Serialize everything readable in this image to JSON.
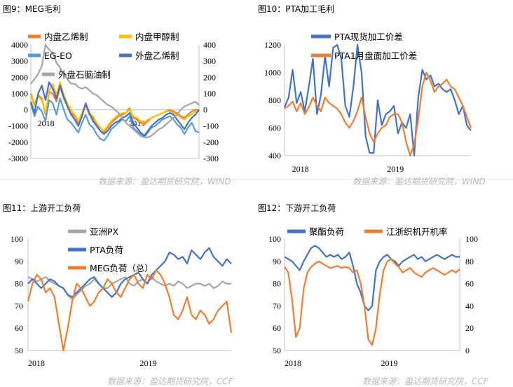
{
  "panels": [
    {
      "title": "图9：MEG毛利",
      "source": "数据来源：盈达期货研究院，WIND",
      "chart_data": {
        "type": "line",
        "x_ticks": [
          "2018",
          "2019"
        ],
        "y_left": {
          "ticks": [
            "4000",
            "3000",
            "2000",
            "1000",
            "0",
            "-1000",
            "-2000",
            "-3000"
          ],
          "lim": [
            -3000,
            4000
          ]
        },
        "y_right": {
          "ticks": [
            "400",
            "300",
            "200",
            "100",
            "0",
            "-100",
            "-200",
            "-300"
          ],
          "lim": [
            -300,
            400
          ]
        },
        "series": [
          {
            "name": "内盘乙烯制",
            "color": "#ed7d31",
            "axis": "left",
            "values": [
              1000,
              300,
              900,
              700,
              -300,
              1100,
              1000,
              500,
              1400,
              700,
              200,
              -200,
              -400,
              -800,
              -300,
              300,
              -300,
              -500,
              -900,
              -1300,
              -1400,
              -1100,
              -800,
              -600,
              -400,
              -300,
              -200,
              100,
              -500,
              -600,
              -800,
              -900,
              -700,
              -500,
              -400,
              -300,
              -200,
              -100,
              0,
              -100,
              -200,
              -400,
              -500,
              -300,
              -100,
              0,
              0
            ]
          },
          {
            "name": "内盘甲醇制",
            "color": "#ffc000",
            "axis": "left",
            "values": [
              900,
              200,
              800,
              600,
              -200,
              1200,
              1600,
              900,
              1700,
              900,
              400,
              0,
              -300,
              -700,
              -200,
              400,
              -200,
              -400,
              -800,
              -1100,
              -1300,
              -1000,
              -700,
              -500,
              -300,
              -200,
              -200,
              0,
              -400,
              -500,
              -700,
              -800,
              -600,
              -500,
              -400,
              -300,
              -200,
              -100,
              -100,
              -200,
              -300,
              -500,
              -600,
              -400,
              -300,
              -100,
              -100
            ]
          },
          {
            "name": "EG-EO",
            "color": "#5b9bd5",
            "axis": "right",
            "values": [
              40,
              -40,
              20,
              -10,
              -70,
              60,
              40,
              -30,
              70,
              0,
              -60,
              -80,
              -110,
              -140,
              -80,
              -30,
              -90,
              -110,
              -150,
              -180,
              -190,
              -160,
              -120,
              -100,
              -80,
              -60,
              -70,
              -40,
              -110,
              -130,
              -150,
              -170,
              -140,
              -110,
              -100,
              -80,
              -60,
              -50,
              -40,
              -60,
              -90,
              -110,
              -150,
              -110,
              -80,
              -130,
              -140
            ]
          },
          {
            "name": "外盘乙烯制",
            "color": "#4472c4",
            "axis": "left",
            "values": [
              500,
              -200,
              1000,
              1500,
              600,
              1700,
              1300,
              700,
              1500,
              800,
              200,
              -300,
              -600,
              -1000,
              -400,
              400,
              -200,
              -700,
              -1000,
              -1300,
              -1500,
              -1300,
              -1000,
              -800,
              -700,
              -500,
              -400,
              -200,
              -800,
              -1100,
              -1400,
              -1600,
              -1300,
              -1000,
              -800,
              -600,
              -500,
              -300,
              -200,
              -300,
              -600,
              -900,
              -1200,
              -800,
              -500,
              -300,
              0
            ]
          },
          {
            "name": "外盘石脑油制",
            "color": "#a5a5a5",
            "axis": "left",
            "values": [
              1600,
              1900,
              2200,
              2700,
              4000,
              3700,
              3500,
              2900,
              2600,
              2200,
              1900,
              1600,
              1600,
              1400,
              1300,
              1400,
              1200,
              1000,
              900,
              700,
              500,
              300,
              200,
              0,
              -200,
              -500,
              -800,
              -1000,
              -1200,
              -1400,
              -1600,
              -1700,
              -1700,
              -1600,
              -1400,
              -1200,
              -1100,
              -900,
              -700,
              -500,
              -300,
              0,
              200,
              300,
              400,
              500,
              300
            ]
          }
        ]
      }
    },
    {
      "title": "图10：PTA加工毛利",
      "source": "数据来源：盈达期货研究院，WIND",
      "chart_data": {
        "type": "line",
        "x_ticks": [
          "2018",
          "2019"
        ],
        "y_left": {
          "ticks": [
            "1200",
            "1000",
            "800",
            "600",
            "400"
          ],
          "lim": [
            400,
            1200
          ]
        },
        "series": [
          {
            "name": "PTA现货加工价差",
            "color": "#4472c4",
            "values": [
              750,
              820,
              1020,
              780,
              860,
              720,
              900,
              1100,
              700,
              840,
              1120,
              900,
              1180,
              1200,
              1100,
              760,
              680,
              900,
              1200,
              1000,
              540,
              420,
              420,
              800,
              620,
              700,
              720,
              760,
              560,
              640,
              600,
              700,
              400,
              820,
              1020,
              950,
              980,
              900,
              920,
              880,
              860,
              880,
              800,
              700,
              760,
              620,
              580
            ]
          },
          {
            "name": "PTA1月盘面加工价差",
            "color": "#ed7d31",
            "values": [
              740,
              760,
              790,
              720,
              780,
              700,
              750,
              820,
              760,
              720,
              820,
              780,
              760,
              740,
              700,
              640,
              600,
              650,
              720,
              820,
              680,
              560,
              500,
              560,
              600,
              620,
              680,
              700,
              700,
              640,
              500,
              400,
              480,
              660,
              900,
              1000,
              940,
              860,
              900,
              920,
              950,
              900,
              880,
              820,
              760,
              680,
              600
            ]
          }
        ]
      }
    },
    {
      "title": "图11：上游开工负荷",
      "source": "数据来源：盈达期货研究院，CCF",
      "chart_data": {
        "type": "line",
        "x_ticks": [
          "2018",
          "2019"
        ],
        "y_left": {
          "ticks": [
            "100",
            "90",
            "80",
            "70",
            "60",
            "50"
          ],
          "lim": [
            50,
            100
          ]
        },
        "series": [
          {
            "name": "亚洲PX",
            "color": "#a5a5a5",
            "values": [
              83,
              82,
              81,
              82,
              83,
              81,
              80,
              79,
              78,
              75,
              73,
              75,
              77,
              79,
              80,
              82,
              80,
              78,
              78,
              80,
              81,
              82,
              83,
              80,
              79,
              81,
              82,
              80,
              83,
              81,
              80,
              79,
              80,
              79,
              81,
              80,
              78,
              79,
              80,
              80,
              79,
              80,
              78,
              79,
              81,
              80,
              80
            ]
          },
          {
            "name": "PTA负荷",
            "color": "#4472c4",
            "values": [
              80,
              82,
              80,
              78,
              80,
              82,
              81,
              79,
              78,
              75,
              74,
              76,
              78,
              80,
              82,
              83,
              80,
              78,
              76,
              74,
              76,
              80,
              82,
              83,
              84,
              85,
              82,
              80,
              84,
              86,
              88,
              90,
              94,
              93,
              91,
              92,
              89,
              95,
              93,
              91,
              94,
              96,
              92,
              90,
              88,
              91,
              89
            ]
          },
          {
            "name": "MEG负荷（总）",
            "color": "#ed7d31",
            "values": [
              72,
              80,
              84,
              82,
              76,
              78,
              74,
              62,
              50,
              60,
              72,
              80,
              78,
              74,
              70,
              72,
              76,
              78,
              82,
              80,
              76,
              74,
              78,
              82,
              84,
              80,
              78,
              84,
              82,
              86,
              84,
              80,
              74,
              66,
              64,
              68,
              74,
              66,
              64,
              68,
              66,
              62,
              64,
              68,
              70,
              72,
              58
            ]
          }
        ]
      }
    },
    {
      "title": "图12：下游开工负荷",
      "source": "数据来源：盈达期货研究院，CCF",
      "chart_data": {
        "type": "line",
        "x_ticks": [
          "2018",
          "2019"
        ],
        "y_left": {
          "ticks": [
            "100",
            "90",
            "80",
            "70",
            "60",
            "50"
          ],
          "lim": [
            50,
            100
          ]
        },
        "y_right": {
          "ticks": [
            "100",
            "80",
            "60",
            "40",
            "20",
            "0"
          ],
          "lim": [
            0,
            100
          ]
        },
        "series": [
          {
            "name": "聚酯负荷",
            "color": "#4472c4",
            "axis": "left",
            "values": [
              92,
              91,
              90,
              88,
              86,
              90,
              93,
              96,
              97,
              96,
              94,
              92,
              93,
              92,
              93,
              91,
              92,
              94,
              88,
              80,
              76,
              70,
              68,
              70,
              86,
              90,
              92,
              93,
              91,
              90,
              88,
              90,
              91,
              92,
              93,
              91,
              92,
              90,
              91,
              92,
              93,
              92,
              91,
              92,
              93,
              92,
              92
            ]
          },
          {
            "name": "江浙织机开机率",
            "color": "#ed7d31",
            "axis": "right",
            "values": [
              75,
              70,
              45,
              12,
              20,
              55,
              70,
              75,
              78,
              80,
              78,
              76,
              74,
              75,
              76,
              74,
              75,
              74,
              70,
              72,
              60,
              40,
              10,
              5,
              20,
              50,
              72,
              80,
              82,
              78,
              75,
              70,
              72,
              74,
              70,
              68,
              66,
              70,
              72,
              74,
              72,
              70,
              68,
              70,
              72,
              70,
              73
            ]
          }
        ]
      }
    }
  ]
}
